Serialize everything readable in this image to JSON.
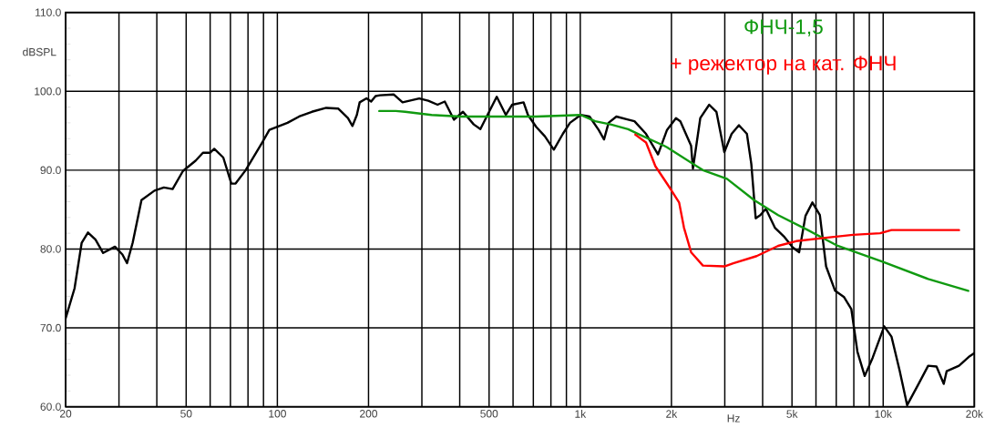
{
  "chart_data": {
    "type": "line",
    "xlabel": "Hz",
    "ylabel": "dBSPL",
    "log": "x",
    "grid": true,
    "legend": "top right",
    "marker": "none",
    "line_style": "solid",
    "xlim": [
      20,
      20000
    ],
    "ylim": [
      60,
      110
    ],
    "xticks": [
      20,
      {
        "value": 30,
        "label": null
      },
      {
        "value": 40,
        "label": null
      },
      50,
      {
        "value": 60,
        "label": null
      },
      {
        "value": 70,
        "label": null
      },
      {
        "value": 80,
        "label": null
      },
      {
        "value": 90,
        "label": null
      },
      100,
      200,
      {
        "value": 300,
        "label": null
      },
      {
        "value": 400,
        "label": null
      },
      500,
      {
        "value": 600,
        "label": null
      },
      {
        "value": 700,
        "label": null
      },
      {
        "value": 800,
        "label": null
      },
      {
        "value": 900,
        "label": null
      },
      {
        "value": 1000,
        "label": "1k"
      },
      {
        "value": 2000,
        "label": "2k"
      },
      {
        "value": 3000,
        "label": null
      },
      {
        "value": 4000,
        "label": null
      },
      {
        "value": 5000,
        "label": "5k"
      },
      {
        "value": 6000,
        "label": null
      },
      {
        "value": 7000,
        "label": null
      },
      {
        "value": 8000,
        "label": null
      },
      {
        "value": 9000,
        "label": null
      },
      {
        "value": 10000,
        "label": "10k"
      },
      {
        "value": 20000,
        "label": "20k"
      }
    ],
    "yticks": [
      {
        "value": 60,
        "label": "60.0"
      },
      {
        "value": 70,
        "label": "70.0"
      },
      {
        "value": 80,
        "label": "80.0"
      },
      {
        "value": 90,
        "label": "90.0"
      },
      {
        "value": 100,
        "label": "100.0"
      },
      {
        "value": 110,
        "label": "110.0"
      }
    ],
    "series": [
      {
        "color": "#000000",
        "x": [
          20,
          21.4,
          22.6,
          23.7,
          25.1,
          26.6,
          29.1,
          30.8,
          31.9,
          33.3,
          35.6,
          39.3,
          42.2,
          45.1,
          48.8,
          53.7,
          56.8,
          59.9,
          61.9,
          66.3,
          70.5,
          72.8,
          78.6,
          89.1,
          94.1,
          108,
          118,
          130,
          145,
          159,
          171,
          177,
          183,
          187,
          197,
          204,
          211,
          218,
          242,
          259,
          294,
          315,
          338,
          357,
          383,
          410,
          445,
          468,
          494,
          530,
          568,
          596,
          650,
          672,
          715,
          764,
          818,
          876,
          925,
          1003,
          1073,
          1150,
          1198,
          1240,
          1316,
          1439,
          1510,
          1649,
          1806,
          1934,
          2070,
          2140,
          2322,
          2355,
          2490,
          2665,
          2815,
          2990,
          3160,
          3340,
          3550,
          3670,
          3795,
          3930,
          4100,
          4390,
          4700,
          5030,
          5280,
          5540,
          5840,
          6180,
          6480,
          6940,
          7430,
          7850,
          8220,
          8690,
          9230,
          10080,
          10650,
          11330,
          12000,
          13050,
          14080,
          15000,
          15850,
          16200,
          17800,
          19300,
          20000
        ],
        "values": [
          71.2,
          75.0,
          80.8,
          82.1,
          81.2,
          79.5,
          80.3,
          79.3,
          78.2,
          80.8,
          86.2,
          87.4,
          87.8,
          87.6,
          89.9,
          91.2,
          92.2,
          92.2,
          92.7,
          91.6,
          88.3,
          88.3,
          90.0,
          93.5,
          95.1,
          96.0,
          96.8,
          97.4,
          97.9,
          97.8,
          96.6,
          95.6,
          97.0,
          98.6,
          99.1,
          98.7,
          99.4,
          99.5,
          99.6,
          98.6,
          99.1,
          98.8,
          98.3,
          98.7,
          96.4,
          97.4,
          95.8,
          95.2,
          97.0,
          99.3,
          97.0,
          98.3,
          98.6,
          97.0,
          95.5,
          94.3,
          92.6,
          94.6,
          96.0,
          97.0,
          96.8,
          95.1,
          93.9,
          96.0,
          96.8,
          96.4,
          96.2,
          94.6,
          92.0,
          95.1,
          96.6,
          96.2,
          93.1,
          90.2,
          96.6,
          98.3,
          97.4,
          92.3,
          94.6,
          95.7,
          94.6,
          90.8,
          83.9,
          84.3,
          85.1,
          82.7,
          81.6,
          80.2,
          79.6,
          84.2,
          85.9,
          84.3,
          77.8,
          74.7,
          73.9,
          72.4,
          67.0,
          63.9,
          66.2,
          70.2,
          68.9,
          64.6,
          60.2,
          62.8,
          65.2,
          65.1,
          62.9,
          64.5,
          65.2,
          66.4,
          66.8
        ]
      },
      {
        "name": "ФНЧ-1,5",
        "color": "#109a10",
        "x": [
          217,
          246,
          264,
          323,
          404,
          715,
          1003,
          1120,
          1260,
          1439,
          1570,
          1890,
          1934,
          2540,
          3050,
          3750,
          4500,
          5640,
          7080,
          9950,
          14080,
          19100
        ],
        "values": [
          97.5,
          97.5,
          97.4,
          97.0,
          96.8,
          96.8,
          97.0,
          96.2,
          95.8,
          95.2,
          94.5,
          93.1,
          92.9,
          90.0,
          88.9,
          86.2,
          84.3,
          82.4,
          80.4,
          78.4,
          76.2,
          74.7
        ]
      },
      {
        "name": "+ режектор на кат. ФНЧ",
        "color": "#ff0000",
        "x": [
          1520,
          1649,
          1770,
          1980,
          2120,
          2200,
          2322,
          2540,
          2990,
          3200,
          3820,
          4500,
          5160,
          6340,
          7950,
          9770,
          10650,
          17800
        ],
        "values": [
          94.5,
          93.5,
          90.5,
          87.7,
          85.9,
          82.7,
          79.6,
          77.9,
          77.8,
          78.2,
          79.1,
          80.4,
          81.0,
          81.4,
          81.8,
          82.0,
          82.4,
          82.4
        ]
      }
    ]
  }
}
